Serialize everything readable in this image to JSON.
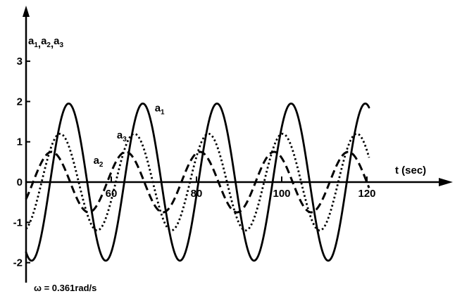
{
  "chart_data": {
    "type": "line",
    "x_axis": {
      "label": "t (sec)",
      "range": [
        40,
        123
      ],
      "ticks": [
        60,
        80,
        100,
        120
      ],
      "tick_labels": [
        "60",
        "80",
        "100",
        "120"
      ]
    },
    "y_axis": {
      "label": "a1,a2,a3",
      "range": [
        -2.5,
        4.3
      ],
      "ticks": [
        -2,
        -1,
        0,
        1,
        2,
        3
      ],
      "tick_labels": [
        "-2",
        "-1",
        "0",
        "1",
        "2",
        "3"
      ]
    },
    "grid": false,
    "legend": "none",
    "annotation": "ω = 0.361rad/s",
    "omega": 0.361,
    "series": [
      {
        "name": "a1",
        "style": "solid",
        "amplitude": 1.95,
        "crest_t": 50.0,
        "label_at": [
          70.2,
          1.75
        ]
      },
      {
        "name": "a2",
        "style": "dashed",
        "amplitude": 0.75,
        "crest_t": 46.0,
        "label_at": [
          55.8,
          0.45
        ]
      },
      {
        "name": "a3",
        "style": "dotted",
        "amplitude": 1.2,
        "crest_t": 48.0,
        "label_at": [
          61.3,
          1.08
        ]
      }
    ]
  }
}
